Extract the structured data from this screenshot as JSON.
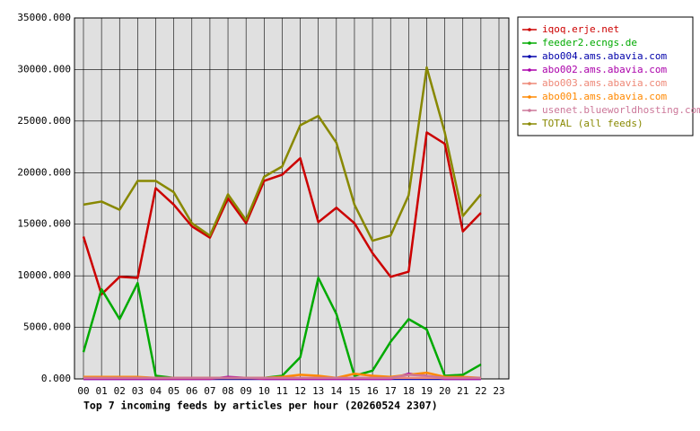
{
  "chart_data": {
    "type": "line",
    "title": "Top 7 incoming feeds by articles per hour (20260524 2307)",
    "categories": [
      "00",
      "01",
      "02",
      "03",
      "04",
      "05",
      "06",
      "07",
      "08",
      "09",
      "10",
      "11",
      "12",
      "13",
      "14",
      "15",
      "16",
      "17",
      "18",
      "19",
      "20",
      "21",
      "22",
      "23"
    ],
    "ylim": [
      0,
      35000
    ],
    "yticks": [
      {
        "value": 0,
        "label": "0.000"
      },
      {
        "value": 5000,
        "label": "5000.000"
      },
      {
        "value": 10000,
        "label": "10000.000"
      },
      {
        "value": 15000,
        "label": "15000.000"
      },
      {
        "value": 20000,
        "label": "20000.000"
      },
      {
        "value": 25000,
        "label": "25000.000"
      },
      {
        "value": 30000,
        "label": "30000.000"
      },
      {
        "value": 35000,
        "label": "35000.000"
      }
    ],
    "grid": true,
    "legend": "outside-right",
    "series": [
      {
        "name": "iqoq.erje.net",
        "color": "#cc0000",
        "values": [
          13800,
          8200,
          9900,
          9800,
          18500,
          16900,
          14800,
          13700,
          17500,
          15100,
          19200,
          19800,
          21400,
          15200,
          16600,
          15100,
          12200,
          9900,
          10400,
          23900,
          22800,
          14300,
          16100,
          null
        ]
      },
      {
        "name": "feeder2.ecngs.de",
        "color": "#00aa00",
        "values": [
          2600,
          8700,
          5800,
          9300,
          300,
          100,
          100,
          100,
          100,
          100,
          100,
          300,
          2100,
          9800,
          6300,
          300,
          800,
          3600,
          5800,
          4800,
          300,
          400,
          1400,
          null
        ]
      },
      {
        "name": "abo004.ams.abavia.com",
        "color": "#0000aa",
        "values": [
          0,
          0,
          0,
          0,
          0,
          0,
          0,
          0,
          0,
          0,
          0,
          0,
          0,
          0,
          0,
          0,
          0,
          0,
          0,
          0,
          0,
          0,
          0,
          null
        ]
      },
      {
        "name": "abo002.ams.abavia.com",
        "color": "#aa00aa",
        "values": [
          0,
          0,
          0,
          0,
          0,
          0,
          0,
          0,
          200,
          100,
          0,
          0,
          0,
          0,
          0,
          0,
          0,
          0,
          500,
          300,
          0,
          0,
          0,
          null
        ]
      },
      {
        "name": "abo003.ams.abavia.com",
        "color": "#ee8877",
        "values": [
          100,
          100,
          100,
          100,
          100,
          100,
          100,
          100,
          100,
          100,
          100,
          100,
          100,
          100,
          100,
          100,
          100,
          100,
          100,
          100,
          100,
          100,
          100,
          null
        ]
      },
      {
        "name": "abo001.ams.abavia.com",
        "color": "#ff8800",
        "values": [
          200,
          200,
          200,
          200,
          100,
          100,
          100,
          100,
          100,
          100,
          100,
          200,
          400,
          300,
          100,
          500,
          300,
          200,
          400,
          600,
          200,
          200,
          100,
          null
        ]
      },
      {
        "name": "usenet.blueworldhosting.com",
        "color": "#cc7799",
        "values": [
          100,
          100,
          100,
          100,
          100,
          100,
          100,
          100,
          100,
          100,
          100,
          100,
          100,
          100,
          100,
          100,
          100,
          100,
          400,
          300,
          100,
          100,
          100,
          null
        ]
      },
      {
        "name": "TOTAL (all feeds)",
        "color": "#888800",
        "values": [
          16900,
          17200,
          16400,
          19200,
          19200,
          18100,
          15100,
          13900,
          17900,
          15400,
          19600,
          20600,
          24600,
          25500,
          22900,
          16900,
          13400,
          13900,
          17800,
          30200,
          23900,
          15800,
          17900,
          null
        ]
      }
    ]
  }
}
